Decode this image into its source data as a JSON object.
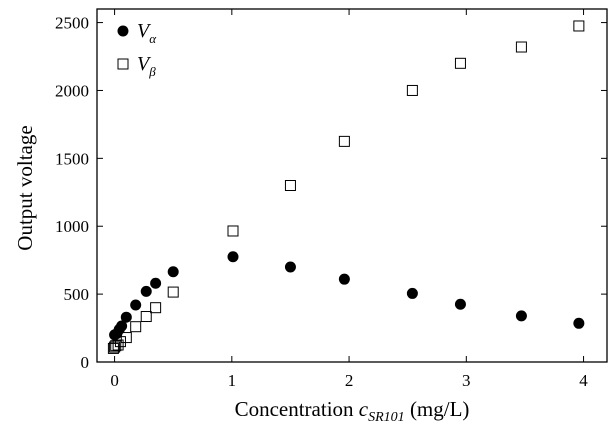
{
  "chart_data": {
    "type": "scatter",
    "xlabel": "Concentration",
    "xlabel_symbol": "c",
    "xlabel_subscript": "SR101",
    "xlabel_unit": "(mg/L)",
    "ylabel": "Output voltage",
    "xlim": [
      -0.15,
      4.2
    ],
    "ylim": [
      0,
      2600
    ],
    "x_ticks": [
      0,
      1,
      2,
      3,
      4
    ],
    "y_ticks": [
      0,
      500,
      1000,
      1500,
      2000,
      2500
    ],
    "legend_position": "top-left",
    "series": [
      {
        "name": "V",
        "name_subscript": "α",
        "marker": "filled-circle",
        "color": "#000000",
        "points": [
          [
            0.0,
            200
          ],
          [
            0.02,
            210
          ],
          [
            0.04,
            240
          ],
          [
            0.06,
            265
          ],
          [
            0.1,
            330
          ],
          [
            0.18,
            420
          ],
          [
            0.27,
            520
          ],
          [
            0.35,
            580
          ],
          [
            0.5,
            665
          ],
          [
            1.01,
            775
          ],
          [
            1.5,
            700
          ],
          [
            1.96,
            610
          ],
          [
            2.54,
            505
          ],
          [
            2.95,
            425
          ],
          [
            3.47,
            340
          ],
          [
            3.96,
            285
          ]
        ]
      },
      {
        "name": "V",
        "name_subscript": "β",
        "marker": "open-square",
        "color": "#000000",
        "points": [
          [
            -0.01,
            100
          ],
          [
            0.0,
            110
          ],
          [
            0.01,
            120
          ],
          [
            0.03,
            125
          ],
          [
            0.05,
            150
          ],
          [
            0.1,
            180
          ],
          [
            0.18,
            260
          ],
          [
            0.27,
            335
          ],
          [
            0.35,
            400
          ],
          [
            0.5,
            515
          ],
          [
            1.01,
            965
          ],
          [
            1.5,
            1300
          ],
          [
            1.96,
            1625
          ],
          [
            2.54,
            2000
          ],
          [
            2.95,
            2200
          ],
          [
            3.47,
            2320
          ],
          [
            3.96,
            2475
          ]
        ]
      }
    ]
  }
}
